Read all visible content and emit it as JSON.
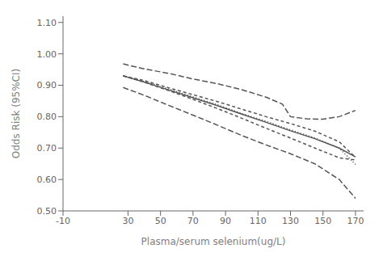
{
  "chart_data": {
    "type": "line",
    "color": "#555555",
    "grid": false,
    "xlabel": "Plasma/serum selenium(ug/L)",
    "ylabel": "Odds Risk (95%CI)",
    "xlim": [
      -10,
      175
    ],
    "ylim": [
      0.5,
      1.12
    ],
    "xticks": [
      -10,
      30,
      50,
      70,
      90,
      110,
      130,
      150,
      170
    ],
    "yticks": [
      {
        "value": 0.5,
        "label": "0.50"
      },
      {
        "value": 0.6,
        "label": "0.60"
      },
      {
        "value": 0.7,
        "label": "0.70"
      },
      {
        "value": 0.8,
        "label": "0.80"
      },
      {
        "value": 0.9,
        "label": "0.90"
      },
      {
        "value": 1.0,
        "label": "1.00"
      },
      {
        "value": 1.1,
        "label": "1.10"
      }
    ],
    "series": [
      {
        "line_style": "solid",
        "x": [
          27,
          40,
          55,
          70,
          85,
          100,
          115,
          130,
          145,
          160,
          170
        ],
        "values": [
          0.93,
          0.91,
          0.885,
          0.86,
          0.835,
          0.808,
          0.782,
          0.755,
          0.73,
          0.7,
          0.672
        ]
      },
      {
        "line_style": "dotted",
        "x": [
          27,
          40,
          55,
          70,
          85,
          100,
          115,
          130,
          145,
          160,
          170
        ],
        "values": [
          0.93,
          0.912,
          0.888,
          0.863,
          0.838,
          0.81,
          0.785,
          0.758,
          0.732,
          0.7,
          0.648
        ]
      },
      {
        "line_style": "longdash",
        "x": [
          27,
          40,
          55,
          70,
          85,
          100,
          115,
          125,
          130,
          140,
          150,
          160,
          170
        ],
        "values": [
          0.968,
          0.952,
          0.938,
          0.92,
          0.905,
          0.886,
          0.862,
          0.84,
          0.8,
          0.793,
          0.792,
          0.8,
          0.82
        ]
      },
      {
        "line_style": "longdash",
        "x": [
          27,
          40,
          55,
          70,
          85,
          100,
          115,
          130,
          145,
          160,
          170
        ],
        "values": [
          0.893,
          0.868,
          0.836,
          0.805,
          0.773,
          0.74,
          0.71,
          0.682,
          0.65,
          0.6,
          0.54
        ]
      },
      {
        "line_style": "dashed",
        "x": [
          27,
          40,
          55,
          70,
          85,
          100,
          115,
          130,
          145,
          160,
          170
        ],
        "values": [
          0.93,
          0.91,
          0.883,
          0.855,
          0.826,
          0.795,
          0.763,
          0.732,
          0.7,
          0.669,
          0.662
        ]
      },
      {
        "line_style": "dashed",
        "x": [
          27,
          40,
          55,
          70,
          85,
          100,
          115,
          130,
          145,
          160,
          170
        ],
        "values": [
          0.93,
          0.915,
          0.892,
          0.87,
          0.848,
          0.824,
          0.8,
          0.778,
          0.754,
          0.72,
          0.67
        ]
      }
    ]
  }
}
